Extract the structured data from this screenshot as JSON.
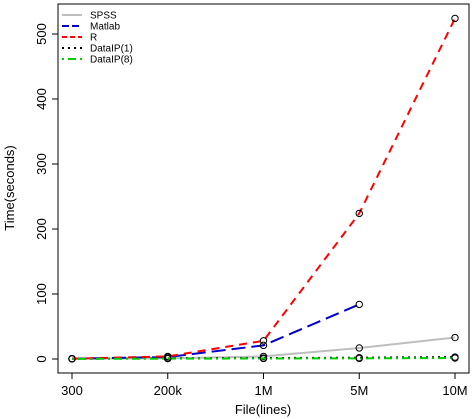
{
  "chart_data": {
    "type": "line",
    "title": "",
    "xlabel": "File(lines)",
    "ylabel": "Time(seconds)",
    "categories": [
      "300",
      "200k",
      "1M",
      "5M",
      "10M"
    ],
    "yticks": [
      0,
      100,
      200,
      300,
      400,
      500
    ],
    "ylim": [
      0,
      525
    ],
    "grid": false,
    "legend_position": "top-left",
    "series": [
      {
        "name": "SPSS",
        "values": [
          0.5,
          1,
          4,
          17,
          33
        ],
        "color": "#bebebe",
        "dash": "solid",
        "markers": true
      },
      {
        "name": "Matlab",
        "values": [
          0.5,
          3,
          21,
          84,
          null
        ],
        "color": "#0000cd",
        "dash": "longdash",
        "markers": true
      },
      {
        "name": "R",
        "values": [
          0.5,
          4,
          28,
          224,
          524
        ],
        "color": "#ff0000",
        "dash": "dashed",
        "markers": true
      },
      {
        "name": "DataIP(1)",
        "values": [
          0.3,
          1,
          1.5,
          2,
          3
        ],
        "color": "#000000",
        "dash": "dotted",
        "markers": true
      },
      {
        "name": "DataIP(8)",
        "values": [
          0.2,
          0.5,
          0.8,
          1,
          1.5
        ],
        "color": "#00cd00",
        "dash": "dotdash",
        "markers": true
      }
    ]
  }
}
